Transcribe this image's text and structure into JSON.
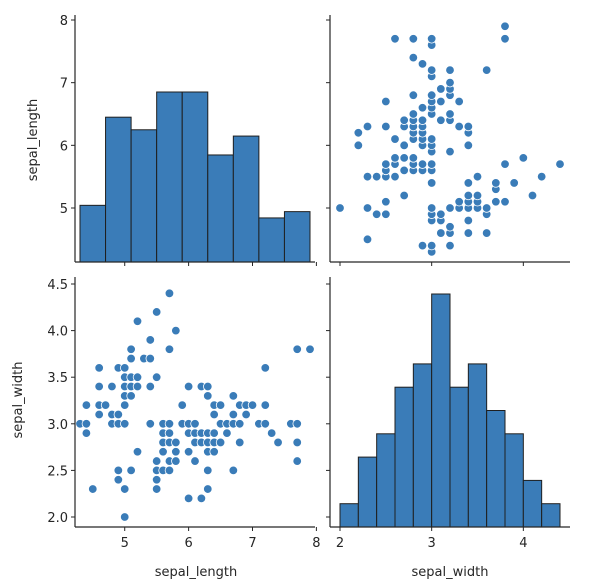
{
  "chart_data": {
    "type": "pairplot",
    "variables": [
      "sepal_length",
      "sepal_width"
    ],
    "color": "#3a7cb8",
    "edge_color": "#1f1f1f",
    "axes": {
      "sepal_length": {
        "label": "sepal_length",
        "range": [
          4.3,
          7.9
        ],
        "ticks": [
          5,
          6,
          7,
          8
        ],
        "tick_labels": [
          "5",
          "6",
          "7",
          "8"
        ]
      },
      "sepal_width": {
        "label": "sepal_width",
        "range": [
          2.0,
          4.4
        ],
        "ticks": [
          2.0,
          2.5,
          3.0,
          3.5,
          4.0,
          4.5
        ],
        "tick_labels": [
          "2.0",
          "2.5",
          "3.0",
          "3.5",
          "4.0",
          "4.5"
        ],
        "x_ticks": [
          2,
          3,
          4
        ],
        "x_tick_labels": [
          "2",
          "3",
          "4"
        ]
      }
    },
    "hist_sepal_length": {
      "type": "bar",
      "bin_edges": [
        4.3,
        4.7,
        5.1,
        5.5,
        5.9,
        6.3,
        6.7,
        7.1,
        7.5,
        7.9
      ],
      "counts": [
        9,
        23,
        21,
        27,
        27,
        17,
        20,
        7,
        8
      ]
    },
    "hist_sepal_width": {
      "type": "bar",
      "bin_edges": [
        2.0,
        2.2,
        2.4,
        2.6,
        2.8,
        3.0,
        3.2,
        3.4,
        3.6,
        3.8,
        4.0,
        4.2,
        4.4
      ],
      "counts": [
        1,
        3,
        4,
        6,
        7,
        10,
        6,
        7,
        5,
        4,
        2,
        1
      ]
    },
    "scatter": {
      "type": "scatter",
      "points": [
        [
          4.3,
          3.0
        ],
        [
          4.4,
          2.9
        ],
        [
          4.4,
          3.0
        ],
        [
          4.4,
          3.2
        ],
        [
          4.5,
          2.3
        ],
        [
          4.6,
          3.1
        ],
        [
          4.6,
          3.2
        ],
        [
          4.6,
          3.4
        ],
        [
          4.6,
          3.6
        ],
        [
          4.7,
          3.2
        ],
        [
          4.8,
          3.0
        ],
        [
          4.8,
          3.1
        ],
        [
          4.8,
          3.4
        ],
        [
          4.9,
          2.5
        ],
        [
          4.9,
          3.0
        ],
        [
          4.9,
          3.1
        ],
        [
          4.9,
          3.6
        ],
        [
          4.9,
          2.4
        ],
        [
          5.0,
          2.0
        ],
        [
          5.0,
          2.3
        ],
        [
          5.0,
          3.0
        ],
        [
          5.0,
          3.2
        ],
        [
          5.0,
          3.3
        ],
        [
          5.0,
          3.4
        ],
        [
          5.0,
          3.5
        ],
        [
          5.0,
          3.6
        ],
        [
          5.1,
          2.5
        ],
        [
          5.1,
          3.3
        ],
        [
          5.1,
          3.4
        ],
        [
          5.1,
          3.5
        ],
        [
          5.1,
          3.7
        ],
        [
          5.1,
          3.8
        ],
        [
          5.2,
          2.7
        ],
        [
          5.2,
          3.4
        ],
        [
          5.2,
          3.5
        ],
        [
          5.2,
          4.1
        ],
        [
          5.3,
          3.7
        ],
        [
          5.4,
          3.0
        ],
        [
          5.4,
          3.4
        ],
        [
          5.4,
          3.7
        ],
        [
          5.4,
          3.9
        ],
        [
          5.5,
          2.3
        ],
        [
          5.5,
          2.4
        ],
        [
          5.5,
          2.5
        ],
        [
          5.5,
          2.6
        ],
        [
          5.5,
          3.5
        ],
        [
          5.5,
          4.2
        ],
        [
          5.6,
          2.5
        ],
        [
          5.6,
          2.7
        ],
        [
          5.6,
          2.8
        ],
        [
          5.6,
          2.9
        ],
        [
          5.6,
          3.0
        ],
        [
          5.7,
          2.5
        ],
        [
          5.7,
          2.6
        ],
        [
          5.7,
          2.8
        ],
        [
          5.7,
          2.9
        ],
        [
          5.7,
          3.0
        ],
        [
          5.7,
          3.8
        ],
        [
          5.7,
          4.4
        ],
        [
          5.8,
          2.6
        ],
        [
          5.8,
          2.7
        ],
        [
          5.8,
          2.8
        ],
        [
          5.8,
          4.0
        ],
        [
          5.9,
          3.0
        ],
        [
          5.9,
          3.2
        ],
        [
          6.0,
          2.2
        ],
        [
          6.0,
          2.7
        ],
        [
          6.0,
          2.9
        ],
        [
          6.0,
          3.0
        ],
        [
          6.0,
          3.4
        ],
        [
          6.1,
          2.6
        ],
        [
          6.1,
          2.8
        ],
        [
          6.1,
          2.9
        ],
        [
          6.1,
          3.0
        ],
        [
          6.2,
          2.2
        ],
        [
          6.2,
          2.8
        ],
        [
          6.2,
          2.9
        ],
        [
          6.2,
          3.4
        ],
        [
          6.3,
          2.3
        ],
        [
          6.3,
          2.5
        ],
        [
          6.3,
          2.7
        ],
        [
          6.3,
          2.8
        ],
        [
          6.3,
          2.9
        ],
        [
          6.3,
          3.3
        ],
        [
          6.3,
          3.4
        ],
        [
          6.4,
          2.7
        ],
        [
          6.4,
          2.8
        ],
        [
          6.4,
          2.9
        ],
        [
          6.4,
          3.1
        ],
        [
          6.4,
          3.2
        ],
        [
          6.5,
          2.8
        ],
        [
          6.5,
          3.0
        ],
        [
          6.5,
          3.2
        ],
        [
          6.6,
          2.9
        ],
        [
          6.6,
          3.0
        ],
        [
          6.7,
          2.5
        ],
        [
          6.7,
          3.0
        ],
        [
          6.7,
          3.1
        ],
        [
          6.7,
          3.3
        ],
        [
          6.8,
          2.8
        ],
        [
          6.8,
          3.0
        ],
        [
          6.8,
          3.2
        ],
        [
          6.9,
          3.1
        ],
        [
          6.9,
          3.2
        ],
        [
          7.0,
          3.2
        ],
        [
          7.1,
          3.0
        ],
        [
          7.2,
          3.0
        ],
        [
          7.2,
          3.2
        ],
        [
          7.2,
          3.6
        ],
        [
          7.3,
          2.9
        ],
        [
          7.4,
          2.8
        ],
        [
          7.6,
          3.0
        ],
        [
          7.7,
          2.6
        ],
        [
          7.7,
          2.8
        ],
        [
          7.7,
          3.0
        ],
        [
          7.7,
          3.8
        ],
        [
          7.9,
          3.8
        ]
      ]
    }
  }
}
